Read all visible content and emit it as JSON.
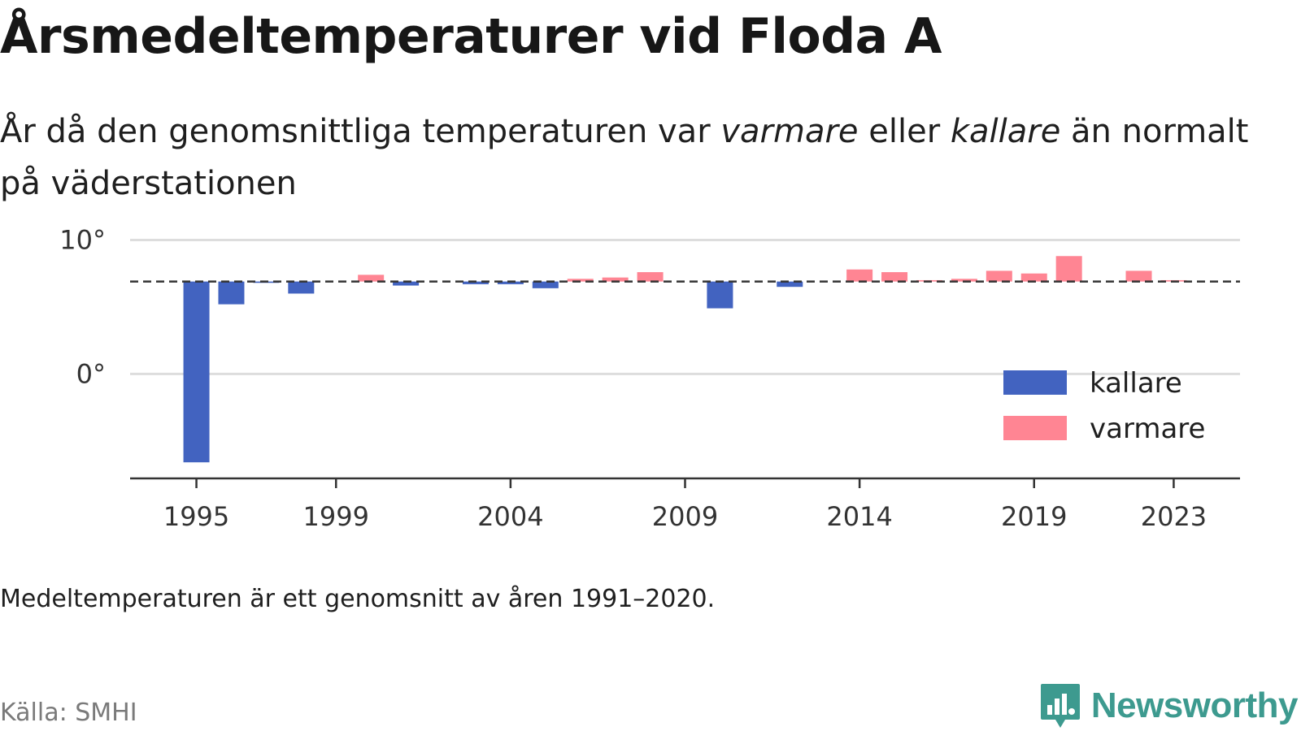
{
  "header": {
    "title": "Årsmedeltemperaturer vid Floda A",
    "subtitle_part1": "År då den genomsnittliga temperaturen var ",
    "subtitle_warm": "varmare",
    "subtitle_part2": " eller ",
    "subtitle_cold": "kallare",
    "subtitle_part3": " än normalt på väderstationen"
  },
  "footer": {
    "note": "Medeltemperaturen är ett genomsnitt av åren 1991–2020.",
    "source": "Källa: SMHI",
    "brand": "Newsworthy",
    "brand_icon": "newsworthy-logo-icon"
  },
  "colors": {
    "cold": "#4263c0",
    "warm": "#ff8593",
    "grid": "#dddddd",
    "axis": "#333333",
    "baseline": "#333333",
    "brand": "#3d9a8f"
  },
  "chart_data": {
    "type": "bar",
    "title": "Årsmedeltemperaturer vid Floda A",
    "baseline": 6.9,
    "baseline_style": "dashed",
    "years": [
      1995,
      1996,
      1997,
      1998,
      1999,
      2000,
      2001,
      2002,
      2003,
      2004,
      2005,
      2006,
      2007,
      2008,
      2009,
      2010,
      2011,
      2012,
      2013,
      2014,
      2015,
      2016,
      2017,
      2018,
      2019,
      2020,
      2021,
      2022,
      2023
    ],
    "values": [
      -6.6,
      5.2,
      6.8,
      6.0,
      null,
      7.4,
      6.6,
      null,
      6.7,
      6.7,
      6.4,
      7.1,
      7.2,
      7.6,
      null,
      4.9,
      null,
      6.5,
      null,
      7.8,
      7.6,
      7.0,
      7.1,
      7.7,
      7.5,
      8.8,
      null,
      7.7,
      7.0
    ],
    "series": [
      {
        "name": "kallare",
        "color": "#4263c0"
      },
      {
        "name": "varmare",
        "color": "#ff8593"
      }
    ],
    "x_ticks": [
      "1995",
      "1999",
      "2004",
      "2009",
      "2014",
      "2019",
      "2023"
    ],
    "y_ticks": [
      {
        "value": 10,
        "label": "10°"
      },
      {
        "value": 0,
        "label": "0°"
      }
    ],
    "ylim": [
      -7.8,
      11
    ],
    "xlim": [
      1993.1,
      2024.9
    ],
    "grid": true,
    "legend": "right"
  }
}
